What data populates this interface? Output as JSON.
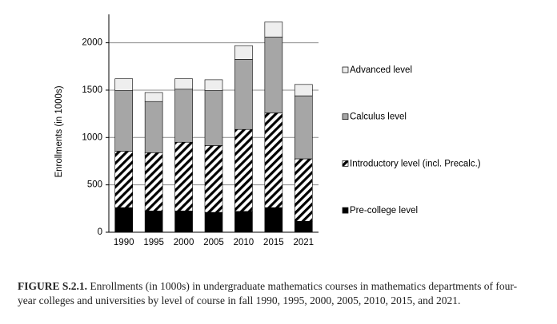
{
  "chart_data": {
    "type": "stacked_bar",
    "y_label": "Enrollments (in 1000s)",
    "categories": [
      "1990",
      "1995",
      "2000",
      "2005",
      "2010",
      "2015",
      "2021"
    ],
    "series": [
      {
        "name": "Pre-college level",
        "color": "#000000",
        "values": [
          260,
          225,
          225,
          210,
          220,
          260,
          115
        ]
      },
      {
        "name": "Introductory level (incl. Precalc.)",
        "color": "#000000",
        "pattern": "diagonal-hatch",
        "values": [
          595,
          615,
          725,
          705,
          865,
          1000,
          660
        ]
      },
      {
        "name": "Calculus level",
        "color": "#a6a6a6",
        "values": [
          640,
          540,
          560,
          580,
          740,
          800,
          665
        ]
      },
      {
        "name": "Advanced level",
        "color": "#eeeeee",
        "values": [
          125,
          95,
          110,
          115,
          145,
          160,
          120
        ]
      }
    ],
    "ylim": [
      0,
      2300
    ],
    "yticks": [
      0,
      500,
      1000,
      1500,
      2000
    ],
    "grid": true,
    "legend": "right",
    "caption_label": "FIGURE S.2.1.",
    "caption": "Enrollments (in 1000s) in undergraduate mathematics courses in mathematics departments of four-year colleges and universities by level of course in fall 1990, 1995, 2000, 2005, 2010, 2015, and 2021."
  }
}
